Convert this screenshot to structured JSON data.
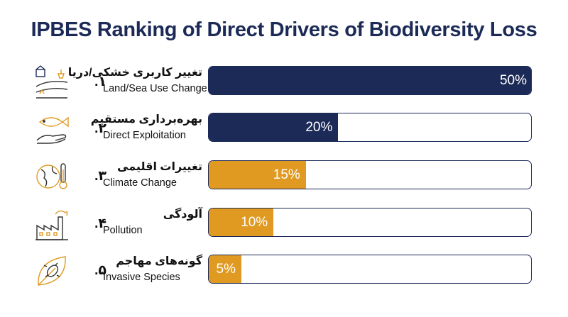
{
  "chart_data": {
    "type": "bar",
    "title": "IPBES Ranking of Direct Drivers of Biodiversity Loss",
    "xlim": [
      0,
      50
    ],
    "categories": [
      {
        "num": "۱.",
        "fa": "تغییر کاربری خشکی/دریا",
        "en": "Land/Sea Use Change",
        "value": 50,
        "label": "50%",
        "color": "#1b2a57",
        "icon": "land-use-icon"
      },
      {
        "num": "۲.",
        "fa": "بهره‌برداری مستقیم",
        "en": "Direct Exploitation",
        "value": 20,
        "label": "20%",
        "color": "#1b2a57",
        "icon": "fish-hand-icon"
      },
      {
        "num": "۳.",
        "fa": "تغییرات اقلیمی",
        "en": "Climate Change",
        "value": 15,
        "label": "15%",
        "color": "#e09a22",
        "icon": "globe-thermometer-icon"
      },
      {
        "num": "۴.",
        "fa": "آلودگی",
        "en": "Pollution",
        "value": 10,
        "label": "10%",
        "color": "#e09a22",
        "icon": "factory-icon"
      },
      {
        "num": "۵.",
        "fa": "گونه‌های مهاجم",
        "en": "Invasive Species",
        "value": 5,
        "label": "5%",
        "color": "#e09a22",
        "icon": "leaf-bug-icon"
      }
    ]
  }
}
